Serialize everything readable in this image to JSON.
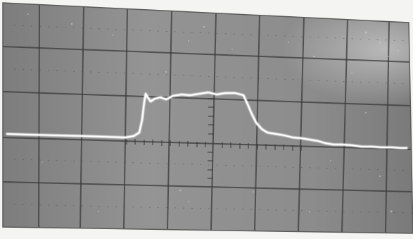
{
  "image": {
    "subject": "oscilloscope-screen-photo",
    "colors": {
      "paper": "#f4f4f2",
      "screen": "#8f8f8f",
      "screen_dark": "#6e6e6e",
      "grid": "#3a3a3a",
      "trace": "#fbfbfb"
    }
  }
}
